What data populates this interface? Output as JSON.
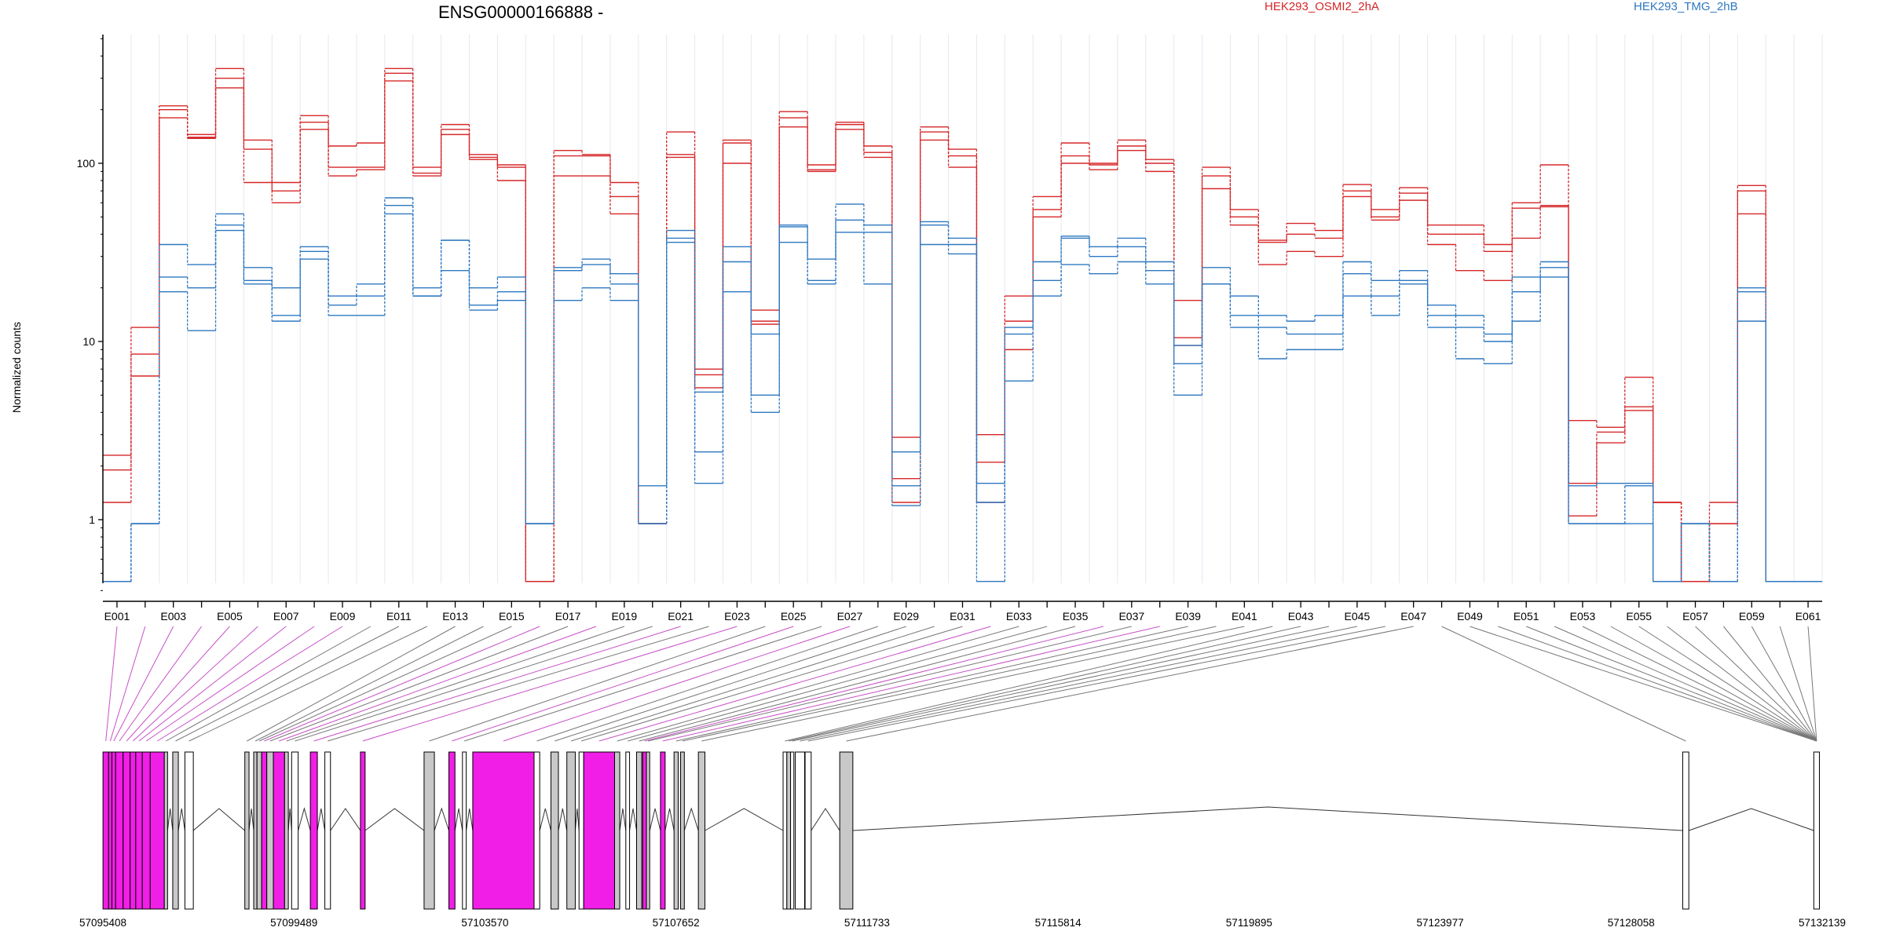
{
  "chart_data": {
    "type": "line",
    "title": "ENSG00000166888 -",
    "ylabel": "Normalized counts",
    "yscale": "log",
    "ylim": [
      0.4,
      500
    ],
    "yticks": [
      {
        "value": 1,
        "label": "1"
      },
      {
        "value": 10,
        "label": "10"
      },
      {
        "value": 100,
        "label": "100"
      }
    ],
    "legend": [
      {
        "name": "HEK293_OSMI2_2hA",
        "color": "#d62728"
      },
      {
        "name": "HEK293_TMG_2hB",
        "color": "#2e78c0"
      }
    ],
    "grid": "vertical-light",
    "categories": [
      "E001",
      "E002",
      "E003",
      "E004",
      "E005",
      "E006",
      "E007",
      "E008",
      "E009",
      "E010",
      "E011",
      "E012",
      "E013",
      "E014",
      "E015",
      "E016",
      "E017",
      "E018",
      "E019",
      "E020",
      "E021",
      "E022",
      "E023",
      "E024",
      "E025",
      "E026",
      "E027",
      "E028",
      "E029",
      "E030",
      "E031",
      "E032",
      "E033",
      "E034",
      "E035",
      "E036",
      "E037",
      "E038",
      "E039",
      "E040",
      "E041",
      "E042",
      "E043",
      "E044",
      "E045",
      "E046",
      "E047",
      "E048",
      "E049",
      "E050",
      "E051",
      "E052",
      "E053",
      "E054",
      "E055",
      "E056",
      "E057",
      "E058",
      "E059",
      "E060",
      "E061"
    ],
    "tick_labels": [
      "E001",
      "E003",
      "E005",
      "E007",
      "E009",
      "E011",
      "E013",
      "E015",
      "E017",
      "E019",
      "E021",
      "E023",
      "E025",
      "E027",
      "E029",
      "E031",
      "E033",
      "E035",
      "E037",
      "E039",
      "E041",
      "E043",
      "E045",
      "E047",
      "E049",
      "E051",
      "E053",
      "E055",
      "E057",
      "E059",
      "E061"
    ],
    "series": [
      {
        "group": "HEK293_OSMI2_2hA",
        "values": [
          2.3,
          12,
          210,
          145,
          340,
          135,
          78,
          185,
          125,
          130,
          340,
          95,
          165,
          112,
          98,
          0.45,
          118,
          112,
          78,
          0.95,
          150,
          7,
          135,
          15,
          195,
          98,
          170,
          125,
          2.9,
          160,
          120,
          3,
          18,
          65,
          130,
          100,
          135,
          105,
          17,
          95,
          55,
          37,
          46,
          42,
          76,
          55,
          73,
          45,
          45,
          35,
          60,
          98,
          3.6,
          3.3,
          6.3,
          1.25,
          0.45,
          1.25,
          75,
          0.45,
          0.45
        ]
      },
      {
        "group": "HEK293_OSMI2_2hA",
        "values": [
          1.9,
          8.5,
          200,
          140,
          300,
          120,
          70,
          170,
          95,
          95,
          320,
          88,
          155,
          108,
          95,
          0.45,
          110,
          110,
          65,
          0.95,
          112,
          6.5,
          130,
          13,
          180,
          92,
          165,
          115,
          1.7,
          150,
          110,
          2.1,
          13,
          55,
          110,
          98,
          125,
          100,
          10.5,
          85,
          50,
          36,
          40,
          38,
          70,
          50,
          68,
          40,
          40,
          32,
          56,
          58,
          1.6,
          3.1,
          4.3,
          1.25,
          0.45,
          0.95,
          70,
          0.45,
          0.45
        ]
      },
      {
        "group": "HEK293_OSMI2_2hA",
        "values": [
          1.25,
          6.4,
          180,
          138,
          265,
          78,
          60,
          155,
          85,
          92,
          290,
          85,
          145,
          105,
          80,
          0.45,
          85,
          85,
          52,
          0.95,
          108,
          5.5,
          100,
          12.5,
          160,
          90,
          155,
          108,
          1.25,
          135,
          95,
          1.25,
          9,
          50,
          100,
          92,
          118,
          90,
          9.5,
          72,
          45,
          27,
          32,
          30,
          65,
          48,
          62,
          35,
          25,
          22,
          38,
          57,
          1.05,
          2.7,
          4.1,
          1.25,
          0.45,
          0.95,
          52,
          0.45,
          0.45
        ]
      },
      {
        "group": "HEK293_TMG_2hB",
        "values": [
          0.45,
          0.95,
          35,
          27,
          52,
          26,
          20,
          34,
          18,
          21,
          64,
          20,
          37,
          20,
          23,
          0.95,
          26,
          29,
          24,
          1.55,
          42,
          5.2,
          34,
          11,
          45,
          29,
          59,
          45,
          2.4,
          47,
          38,
          1.6,
          12,
          28,
          39,
          34,
          38,
          28,
          9.5,
          26,
          18,
          14,
          13,
          14,
          28,
          22,
          25,
          16,
          14,
          11,
          23,
          28,
          1.55,
          1.6,
          1.6,
          0.45,
          0.95,
          0.45,
          20,
          0.45,
          0.45
        ]
      },
      {
        "group": "HEK293_TMG_2hB",
        "values": [
          0.45,
          0.95,
          23,
          20,
          45,
          22,
          14,
          32,
          16,
          18,
          58,
          18,
          37,
          16,
          19,
          0.95,
          25,
          27,
          21,
          0.95,
          38,
          2.4,
          28,
          5,
          44,
          22,
          48,
          41,
          1.55,
          45,
          35,
          1.25,
          11,
          22,
          38,
          30,
          34,
          25,
          7.5,
          21,
          14,
          12,
          11,
          11,
          24,
          18,
          22,
          14,
          12,
          10,
          19,
          26,
          0.95,
          0.95,
          1.55,
          0.45,
          0.95,
          0.45,
          19,
          0.45,
          0.45
        ]
      },
      {
        "group": "HEK293_TMG_2hB",
        "values": [
          0.45,
          0.95,
          19,
          11.5,
          42,
          21,
          13,
          29,
          14,
          14,
          52,
          18,
          25,
          15,
          17,
          0.95,
          17,
          20,
          17,
          0.95,
          36,
          1.6,
          19,
          4,
          36,
          21,
          41,
          21,
          1.2,
          35,
          31,
          0.45,
          6,
          18,
          27,
          24,
          28,
          21,
          5,
          21,
          12,
          8,
          9,
          9,
          18,
          14,
          21,
          12,
          8,
          7.5,
          13,
          23,
          0.95,
          0.95,
          0.95,
          0.45,
          0.95,
          0.45,
          13,
          0.45,
          0.45
        ]
      }
    ],
    "genome_axis": {
      "start": 57095408,
      "end": 57132139,
      "tick_labels": [
        "57095408",
        "57099489",
        "57103570",
        "57107652",
        "57111733",
        "57115814",
        "57119895",
        "57123977",
        "57128058",
        "57132139"
      ],
      "exons": [
        {
          "start": 57095410,
          "end": 57095530,
          "color": "#f01ee6"
        },
        {
          "start": 57095530,
          "end": 57095600,
          "color": "#f01ee6"
        },
        {
          "start": 57095600,
          "end": 57095680,
          "color": "#f01ee6"
        },
        {
          "start": 57095680,
          "end": 57095840,
          "color": "#f01ee6"
        },
        {
          "start": 57095840,
          "end": 57095990,
          "color": "#f01ee6"
        },
        {
          "start": 57095990,
          "end": 57096110,
          "color": "#f01ee6"
        },
        {
          "start": 57096110,
          "end": 57096250,
          "color": "#f01ee6"
        },
        {
          "start": 57096250,
          "end": 57096420,
          "color": "#f01ee6"
        },
        {
          "start": 57096420,
          "end": 57096720,
          "color": "#f01ee6"
        },
        {
          "start": 57096720,
          "end": 57096790,
          "color": "#c8c8c8"
        },
        {
          "start": 57096900,
          "end": 57097020,
          "color": "#c8c8c8"
        },
        {
          "start": 57097160,
          "end": 57097340,
          "color": "#ffffff"
        },
        {
          "start": 57098440,
          "end": 57098530,
          "color": "#c8c8c8"
        },
        {
          "start": 57098630,
          "end": 57098700,
          "color": "#c8c8c8"
        },
        {
          "start": 57098700,
          "end": 57098800,
          "color": "#c8c8c8"
        },
        {
          "start": 57098800,
          "end": 57098910,
          "color": "#f01ee6"
        },
        {
          "start": 57098910,
          "end": 57099050,
          "color": "#c8c8c8"
        },
        {
          "start": 57099050,
          "end": 57099290,
          "color": "#f01ee6"
        },
        {
          "start": 57099290,
          "end": 57099370,
          "color": "#c8c8c8"
        },
        {
          "start": 57099440,
          "end": 57099580,
          "color": "#ffffff"
        },
        {
          "start": 57099840,
          "end": 57099990,
          "color": "#f01ee6"
        },
        {
          "start": 57100150,
          "end": 57100270,
          "color": "#ffffff"
        },
        {
          "start": 57100910,
          "end": 57101010,
          "color": "#f01ee6"
        },
        {
          "start": 57102270,
          "end": 57102490,
          "color": "#c8c8c8"
        },
        {
          "start": 57102800,
          "end": 57102930,
          "color": "#f01ee6"
        },
        {
          "start": 57103090,
          "end": 57103170,
          "color": "#ffffff"
        },
        {
          "start": 57103310,
          "end": 57104620,
          "color": "#f01ee6"
        },
        {
          "start": 57104620,
          "end": 57104740,
          "color": "#ffffff"
        },
        {
          "start": 57104980,
          "end": 57105140,
          "color": "#c8c8c8"
        },
        {
          "start": 57105320,
          "end": 57105500,
          "color": "#c8c8c8"
        },
        {
          "start": 57105580,
          "end": 57105680,
          "color": "#ffffff"
        },
        {
          "start": 57105680,
          "end": 57106340,
          "color": "#f01ee6"
        },
        {
          "start": 57106340,
          "end": 57106450,
          "color": "#c8c8c8"
        },
        {
          "start": 57106580,
          "end": 57106660,
          "color": "#ffffff"
        },
        {
          "start": 57106810,
          "end": 57106920,
          "color": "#c8c8c8"
        },
        {
          "start": 57106940,
          "end": 57107020,
          "color": "#f01ee6"
        },
        {
          "start": 57107020,
          "end": 57107090,
          "color": "#c8c8c8"
        },
        {
          "start": 57107320,
          "end": 57107420,
          "color": "#f01ee6"
        },
        {
          "start": 57107610,
          "end": 57107700,
          "color": "#c8c8c8"
        },
        {
          "start": 57107750,
          "end": 57107830,
          "color": "#c8c8c8"
        },
        {
          "start": 57108130,
          "end": 57108270,
          "color": "#c8c8c8"
        },
        {
          "start": 57109940,
          "end": 57110020,
          "color": "#ffffff"
        },
        {
          "start": 57110020,
          "end": 57110100,
          "color": "#c8c8c8"
        },
        {
          "start": 57110100,
          "end": 57110170,
          "color": "#ffffff"
        },
        {
          "start": 57110200,
          "end": 57110400,
          "color": "#ffffff"
        },
        {
          "start": 57110410,
          "end": 57110540,
          "color": "#ffffff"
        },
        {
          "start": 57111150,
          "end": 57111430,
          "color": "#c8c8c8"
        },
        {
          "start": 57129160,
          "end": 57129290,
          "color": "#ffffff"
        },
        {
          "start": 57131960,
          "end": 57132080,
          "color": "#ffffff"
        }
      ]
    }
  }
}
